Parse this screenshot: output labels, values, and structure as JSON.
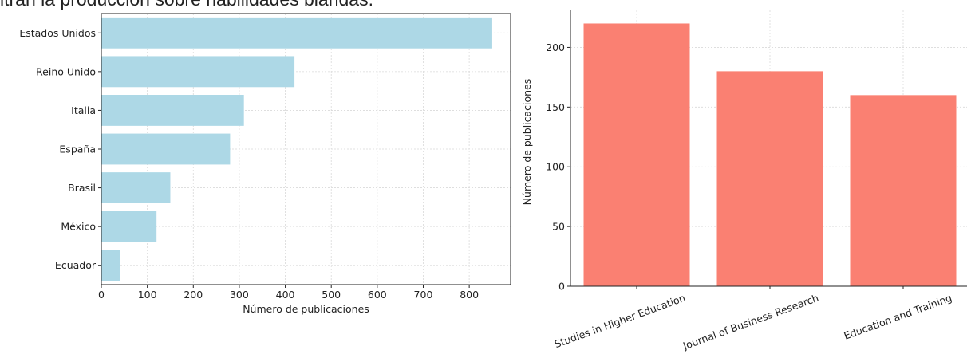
{
  "caption": "itran la producción sobre habilidades blandas.",
  "chart_data": [
    {
      "type": "bar",
      "orientation": "horizontal",
      "categories": [
        "Estados Unidos",
        "Reino Unido",
        "Italia",
        "España",
        "Brasil",
        "México",
        "Ecuador"
      ],
      "values": [
        850,
        420,
        310,
        280,
        150,
        120,
        40
      ],
      "xlabel": "Número de publicaciones",
      "ylabel": "",
      "xlim": [
        0,
        890
      ],
      "xticks": [
        0,
        100,
        200,
        300,
        400,
        500,
        600,
        700,
        800
      ],
      "grid": true,
      "color": "#add8e6"
    },
    {
      "type": "bar",
      "orientation": "vertical",
      "categories": [
        "Studies in Higher Education",
        "Journal of Business Research",
        "Education and Training"
      ],
      "values": [
        220,
        180,
        160
      ],
      "xlabel": "",
      "ylabel": "Número de publicaciones",
      "ylim": [
        0,
        231
      ],
      "yticks": [
        0,
        50,
        100,
        150,
        200
      ],
      "grid": true,
      "color": "#fa8072"
    }
  ]
}
